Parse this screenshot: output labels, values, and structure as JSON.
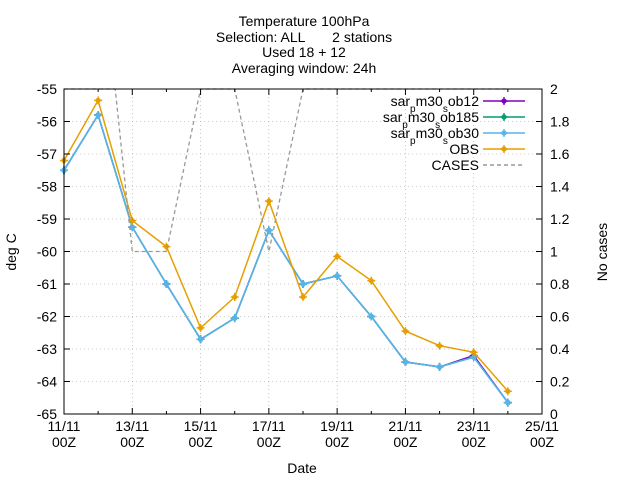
{
  "chart_data": {
    "type": "line",
    "title_lines": [
      "Temperature 100hPa",
      "Selection: ALL       2 stations",
      "Used 18 + 12",
      "Averaging window: 24h"
    ],
    "xlabel": "Date",
    "ylabel": "deg C",
    "y2label": "No cases",
    "x_ticks": [
      {
        "day": 11,
        "line1": "11/11",
        "line2": "00Z"
      },
      {
        "day": 13,
        "line1": "13/11",
        "line2": "00Z"
      },
      {
        "day": 15,
        "line1": "15/11",
        "line2": "00Z"
      },
      {
        "day": 17,
        "line1": "17/11",
        "line2": "00Z"
      },
      {
        "day": 19,
        "line1": "19/11",
        "line2": "00Z"
      },
      {
        "day": 21,
        "line1": "21/11",
        "line2": "00Z"
      },
      {
        "day": 23,
        "line1": "23/11",
        "line2": "00Z"
      },
      {
        "day": 25,
        "line1": "25/11",
        "line2": "00Z"
      }
    ],
    "xlim": [
      11,
      25
    ],
    "ylim": [
      -65,
      -55
    ],
    "y_ticks": [
      "-55",
      "-56",
      "-57",
      "-58",
      "-59",
      "-60",
      "-61",
      "-62",
      "-63",
      "-64",
      "-65"
    ],
    "y2lim": [
      0,
      2
    ],
    "y2_ticks": [
      "2",
      "1.8",
      "1.6",
      "1.4",
      "1.2",
      "1",
      "0.8",
      "0.6",
      "0.4",
      "0.2",
      "0"
    ],
    "legend_position": "top-right",
    "series": [
      {
        "name": "sar_pm30_sob12",
        "label_parts": [
          [
            "sar",
            ""
          ],
          [
            "p",
            "sub"
          ],
          [
            "m30",
            ""
          ],
          [
            "s",
            "sub"
          ],
          [
            "ob12",
            ""
          ]
        ],
        "color": "#8000c0",
        "marker": "cross",
        "axis": "y",
        "x": [
          11,
          12,
          13,
          14,
          15,
          16,
          17,
          18,
          19,
          20,
          21,
          22,
          23,
          24
        ],
        "y": [
          -57.5,
          -55.8,
          -59.25,
          -61.0,
          -62.7,
          -62.05,
          -59.35,
          -61.0,
          -60.75,
          -62.0,
          -63.4,
          -63.55,
          -63.2,
          -64.65
        ]
      },
      {
        "name": "sar_pm30_sob185",
        "label_parts": [
          [
            "sar",
            ""
          ],
          [
            "p",
            "sub"
          ],
          [
            "m30",
            ""
          ],
          [
            "s",
            "sub"
          ],
          [
            "ob185",
            ""
          ]
        ],
        "color": "#009e73",
        "marker": "cross",
        "axis": "y",
        "x": [
          11,
          12,
          13,
          14,
          15,
          16,
          17,
          18,
          19,
          20,
          21,
          22,
          23,
          24
        ],
        "y": [
          -57.5,
          -55.8,
          -59.25,
          -61.0,
          -62.7,
          -62.05,
          -59.35,
          -61.0,
          -60.75,
          -62.0,
          -63.4,
          -63.55,
          -63.25,
          -64.65
        ]
      },
      {
        "name": "sar_pm30_sob30",
        "label_parts": [
          [
            "sar",
            ""
          ],
          [
            "p",
            "sub"
          ],
          [
            "m30",
            ""
          ],
          [
            "s",
            "sub"
          ],
          [
            "ob30",
            ""
          ]
        ],
        "color": "#56b4e9",
        "marker": "cross",
        "axis": "y",
        "x": [
          11,
          12,
          13,
          14,
          15,
          16,
          17,
          18,
          19,
          20,
          21,
          22,
          23,
          24
        ],
        "y": [
          -57.5,
          -55.8,
          -59.25,
          -61.0,
          -62.7,
          -62.05,
          -59.35,
          -61.0,
          -60.75,
          -62.0,
          -63.4,
          -63.55,
          -63.25,
          -64.65
        ]
      },
      {
        "name": "OBS",
        "label_parts": [
          [
            "OBS",
            ""
          ]
        ],
        "color": "#e69f00",
        "marker": "cross",
        "axis": "y",
        "x": [
          11,
          12,
          13,
          14,
          15,
          16,
          17,
          18,
          19,
          20,
          21,
          22,
          23,
          24
        ],
        "y": [
          -57.2,
          -55.35,
          -59.05,
          -59.85,
          -62.35,
          -61.4,
          -58.45,
          -61.4,
          -60.15,
          -60.9,
          -62.45,
          -62.9,
          -63.1,
          -64.3
        ]
      },
      {
        "name": "CASES",
        "label_parts": [
          [
            "CASES",
            ""
          ]
        ],
        "color": "#999999",
        "marker": "none",
        "dashed": true,
        "axis": "y2",
        "x": [
          11,
          11.5,
          12,
          12.5,
          13,
          13.5,
          14,
          14.5,
          15,
          15.5,
          16,
          16.5,
          17,
          17.5,
          18,
          18.5,
          19,
          19.5,
          20,
          20.5,
          21,
          21.5,
          22,
          22.5,
          23,
          23.5,
          24
        ],
        "y": [
          2,
          2,
          2,
          2,
          1,
          1,
          1,
          1.5,
          2,
          2,
          2,
          1.5,
          1,
          1.5,
          2,
          2,
          2,
          2,
          2,
          2,
          2,
          2,
          2,
          2,
          2,
          2,
          2
        ]
      }
    ]
  }
}
